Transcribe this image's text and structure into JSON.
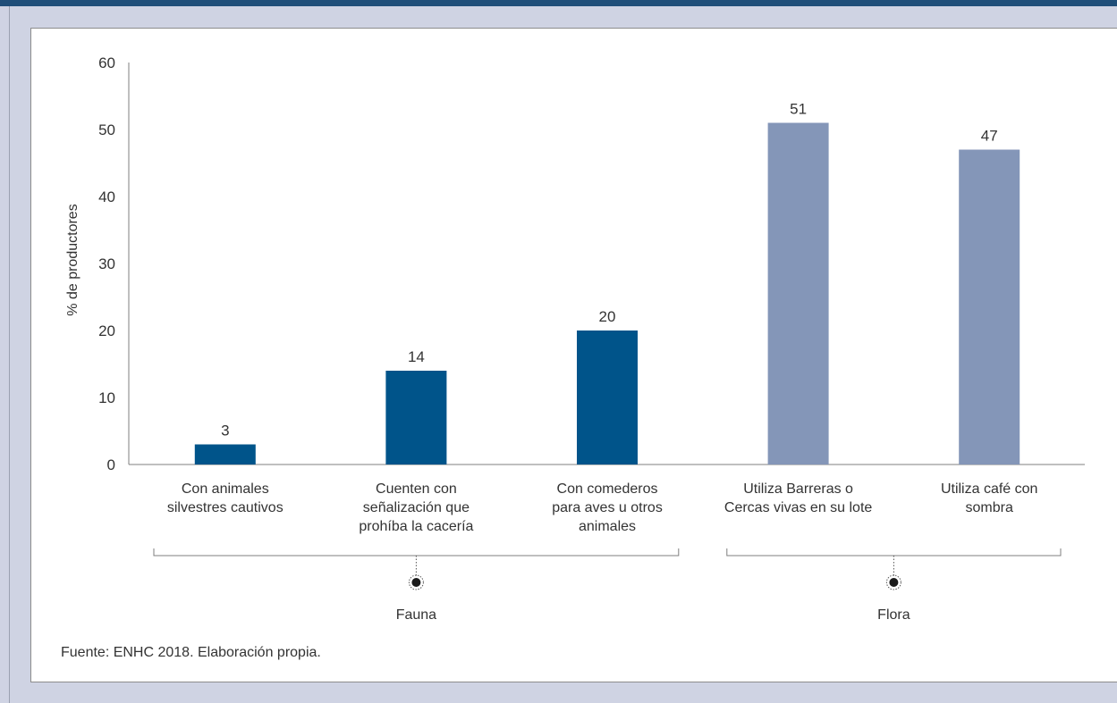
{
  "chart_data": {
    "type": "bar",
    "categories": [
      [
        "Con animales",
        "silvestres cautivos"
      ],
      [
        "Cuenten con",
        "señalización que",
        "prohíba la cacería"
      ],
      [
        "Con comederos",
        "para aves u otros",
        "animales"
      ],
      [
        "Utiliza Barreras o",
        "Cercas vivas en su lote"
      ],
      [
        "Utiliza café con",
        "sombra"
      ]
    ],
    "values": [
      3,
      14,
      20,
      51,
      47
    ],
    "data_labels": [
      "3",
      "14",
      "20",
      "51",
      "47"
    ],
    "bar_groups": [
      "Fauna",
      "Fauna",
      "Fauna",
      "Flora",
      "Flora"
    ],
    "groups": [
      {
        "name": "Fauna",
        "start": 0,
        "end": 2
      },
      {
        "name": "Flora",
        "start": 3,
        "end": 4
      }
    ],
    "colors": {
      "Fauna": "#00548a",
      "Flora": "#8496b8"
    },
    "ylabel": "% de productores",
    "ylim": [
      0,
      60
    ],
    "yticks": [
      0,
      10,
      20,
      30,
      40,
      50,
      60
    ],
    "grid": false
  },
  "source": "Fuente: ENHC 2018. Elaboración propia."
}
